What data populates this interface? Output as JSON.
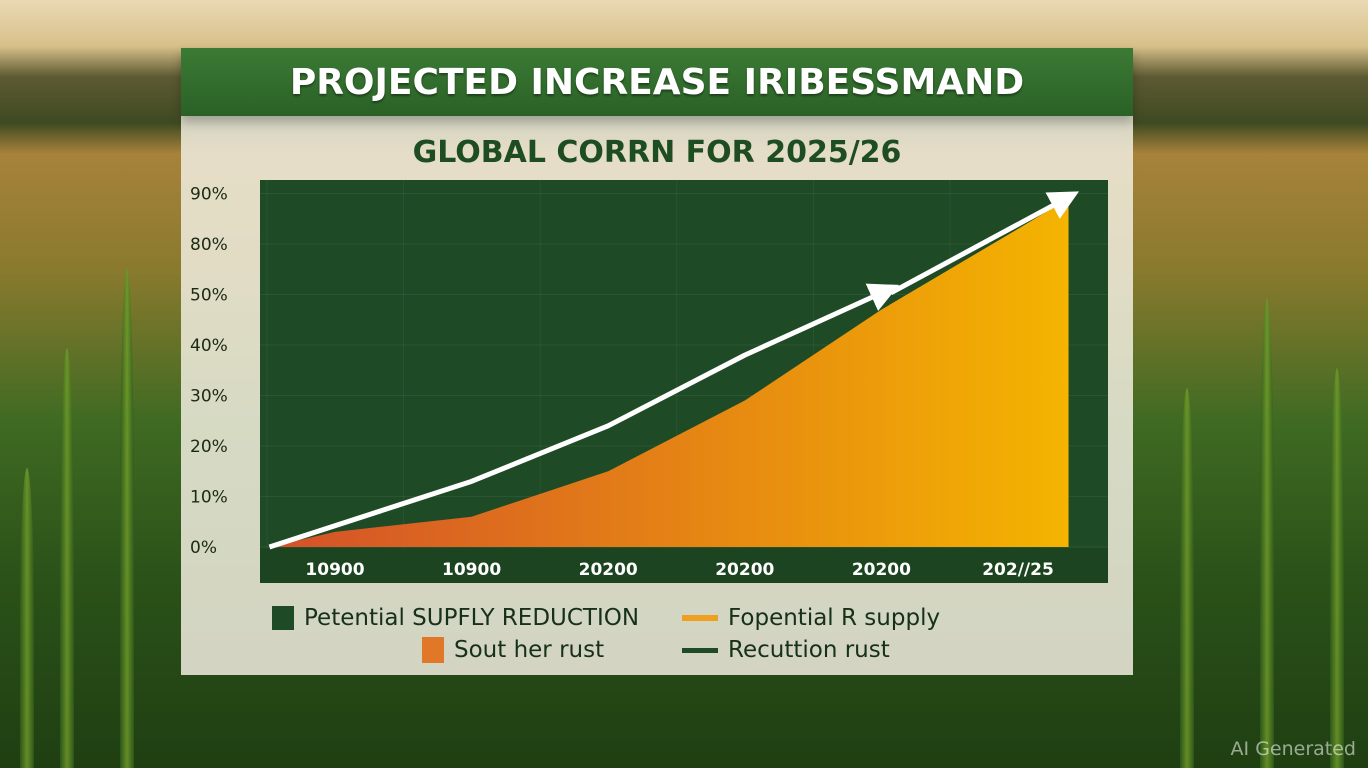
{
  "title": "PROJECTED INCREASE IRIBESSMAND",
  "subtitle": "GLOBAL CORRN FOR 2025/26",
  "watermark": "AI Generated",
  "colors": {
    "plot_bg": "#1f4a26",
    "area_start": "#d4502a",
    "area_end": "#f4b400",
    "arrow": "#ffffff",
    "banner": "#2f6a2b"
  },
  "chart_data": {
    "type": "area",
    "title": "PROJECTED INCREASE IRIBESSMAND",
    "subtitle": "GLOBAL CORRN FOR 2025/26",
    "categories": [
      "10900",
      "10900",
      "20200",
      "20200",
      "20200",
      "202//25"
    ],
    "yticks": [
      "0%",
      "10%",
      "20%",
      "30%",
      "40%",
      "50%",
      "80%",
      "90%"
    ],
    "ytick_values": [
      0,
      10,
      20,
      30,
      40,
      50,
      80,
      90
    ],
    "ylim": [
      0,
      90
    ],
    "series": [
      {
        "name": "Potential supply reduction area",
        "type": "area",
        "x": [
          -0.48,
          0,
          1,
          2,
          3,
          4,
          5,
          5.37
        ],
        "values": [
          0,
          3,
          6,
          15,
          29,
          47,
          83,
          89
        ]
      },
      {
        "name": "Trend arrow 1",
        "type": "arrow",
        "x": [
          -0.48,
          1,
          2,
          3,
          4.03
        ],
        "values": [
          0,
          13,
          24,
          38,
          52
        ]
      },
      {
        "name": "Trend arrow 2",
        "type": "arrow",
        "x": [
          4.07,
          5.35
        ],
        "values": [
          51,
          89
        ]
      }
    ],
    "legend": [
      {
        "label": "Petential SUPFLY REDUCTION",
        "color": "#1f4a26",
        "shape": "square"
      },
      {
        "label": "Fopential R supply",
        "color": "#f0a020",
        "shape": "line"
      },
      {
        "label": "Sout her rust",
        "color": "#e07828",
        "shape": "square"
      },
      {
        "label": "Recuttion rust",
        "color": "#1f4a26",
        "shape": "line"
      }
    ],
    "grid": true,
    "legend_position": "bottom"
  }
}
